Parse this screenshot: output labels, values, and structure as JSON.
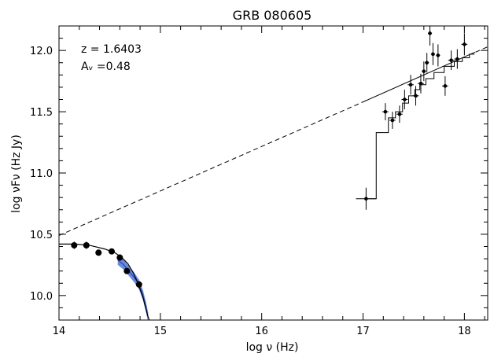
{
  "chart_data": {
    "type": "scatter",
    "title": "GRB 080605",
    "xlabel": "log ν (Hz)",
    "ylabel": "log νFν (Hz Jy)",
    "xlim": [
      14,
      18.23
    ],
    "ylim": [
      9.8,
      12.2
    ],
    "x_ticks": [
      14,
      15,
      16,
      17,
      18
    ],
    "y_ticks": [
      10.0,
      10.5,
      11.0,
      11.5,
      12.0
    ],
    "grid": false,
    "annotations": [
      "z = 1.6403",
      "Aᵥ =0.48"
    ],
    "series": [
      {
        "kind": "optical-points",
        "values": [
          {
            "x": 14.15,
            "y": 10.41,
            "yerr": 0.03
          },
          {
            "x": 14.27,
            "y": 10.41,
            "yerr": 0.03
          },
          {
            "x": 14.39,
            "y": 10.35,
            "yerr": 0.025
          },
          {
            "x": 14.52,
            "y": 10.36,
            "yerr": 0.02
          },
          {
            "x": 14.6,
            "y": 10.31,
            "yerr": 0.02
          },
          {
            "x": 14.67,
            "y": 10.2,
            "yerr": 0.02
          },
          {
            "x": 14.79,
            "y": 10.09,
            "yerr": 0.03
          }
        ]
      },
      {
        "kind": "xray-points",
        "values": [
          {
            "x": 17.03,
            "y": 10.79,
            "xerr": 0.1,
            "yerr": 0.09
          },
          {
            "x": 17.22,
            "y": 11.5,
            "xerr": 0.03,
            "yerr": 0.07
          },
          {
            "x": 17.29,
            "y": 11.43,
            "xerr": 0.03,
            "yerr": 0.07
          },
          {
            "x": 17.36,
            "y": 11.48,
            "xerr": 0.03,
            "yerr": 0.07
          },
          {
            "x": 17.41,
            "y": 11.6,
            "xerr": 0.03,
            "yerr": 0.08
          },
          {
            "x": 17.47,
            "y": 11.72,
            "xerr": 0.03,
            "yerr": 0.08
          },
          {
            "x": 17.52,
            "y": 11.63,
            "xerr": 0.03,
            "yerr": 0.08
          },
          {
            "x": 17.57,
            "y": 11.73,
            "xerr": 0.03,
            "yerr": 0.08
          },
          {
            "x": 17.6,
            "y": 11.83,
            "xerr": 0.02,
            "yerr": 0.08
          },
          {
            "x": 17.63,
            "y": 11.9,
            "xerr": 0.02,
            "yerr": 0.08
          },
          {
            "x": 17.66,
            "y": 12.14,
            "xerr": 0.02,
            "yerr": 0.1
          },
          {
            "x": 17.69,
            "y": 11.97,
            "xerr": 0.02,
            "yerr": 0.09
          },
          {
            "x": 17.74,
            "y": 11.96,
            "xerr": 0.02,
            "yerr": 0.09
          },
          {
            "x": 17.81,
            "y": 11.71,
            "xerr": 0.03,
            "yerr": 0.08
          },
          {
            "x": 17.87,
            "y": 11.92,
            "xerr": 0.03,
            "yerr": 0.08
          },
          {
            "x": 17.93,
            "y": 11.93,
            "xerr": 0.03,
            "yerr": 0.08
          },
          {
            "x": 18.0,
            "y": 12.05,
            "xerr": 0.03,
            "yerr": 0.09
          }
        ]
      },
      {
        "kind": "power-law-model",
        "values": [
          {
            "x": 14.0,
            "y": 10.49
          },
          {
            "x": 17.0,
            "y": 11.58
          },
          {
            "x": 18.23,
            "y": 12.03
          }
        ]
      },
      {
        "kind": "extincted-model",
        "values": [
          {
            "x": 14.0,
            "y": 10.42
          },
          {
            "x": 14.15,
            "y": 10.42
          },
          {
            "x": 14.3,
            "y": 10.41
          },
          {
            "x": 14.45,
            "y": 10.38
          },
          {
            "x": 14.55,
            "y": 10.35
          },
          {
            "x": 14.62,
            "y": 10.31
          },
          {
            "x": 14.68,
            "y": 10.26
          },
          {
            "x": 14.73,
            "y": 10.19
          },
          {
            "x": 14.78,
            "y": 10.1
          },
          {
            "x": 14.83,
            "y": 9.98
          },
          {
            "x": 14.87,
            "y": 9.85
          },
          {
            "x": 14.89,
            "y": 9.8
          }
        ]
      },
      {
        "kind": "binned-model",
        "values": [
          {
            "x": 17.03,
            "y": 10.79
          },
          {
            "x": 17.13,
            "y": 11.33
          },
          {
            "x": 17.25,
            "y": 11.45
          },
          {
            "x": 17.32,
            "y": 11.5
          },
          {
            "x": 17.39,
            "y": 11.57
          },
          {
            "x": 17.45,
            "y": 11.63
          },
          {
            "x": 17.51,
            "y": 11.68
          },
          {
            "x": 17.56,
            "y": 11.72
          },
          {
            "x": 17.62,
            "y": 11.77
          },
          {
            "x": 17.7,
            "y": 11.82
          },
          {
            "x": 17.8,
            "y": 11.87
          },
          {
            "x": 17.9,
            "y": 11.91
          },
          {
            "x": 17.98,
            "y": 11.94
          },
          {
            "x": 18.05,
            "y": 11.97
          }
        ]
      },
      {
        "kind": "optical-spectrum-band",
        "color": "#3a63d6",
        "values": [
          {
            "x": 14.58,
            "y": 10.29
          },
          {
            "x": 14.64,
            "y": 10.25
          },
          {
            "x": 14.69,
            "y": 10.2
          },
          {
            "x": 14.74,
            "y": 10.15
          },
          {
            "x": 14.79,
            "y": 10.09
          },
          {
            "x": 14.83,
            "y": 10.0
          },
          {
            "x": 14.86,
            "y": 9.9
          },
          {
            "x": 14.88,
            "y": 9.82
          }
        ]
      }
    ]
  }
}
